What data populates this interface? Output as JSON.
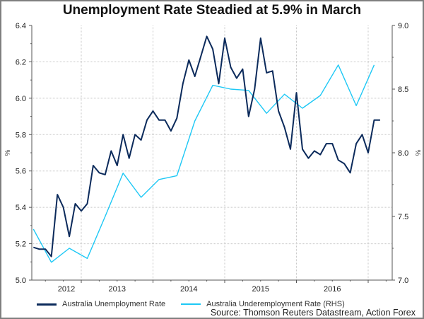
{
  "chart_data": {
    "type": "line",
    "title": "Unemployment Rate Steadied at 5.9% in March",
    "ylabel_left": "%",
    "ylabel_right": "%",
    "ylim_left": [
      5.0,
      6.4
    ],
    "ylim_right": [
      7.0,
      9.0
    ],
    "yticks_left": [
      "5.0",
      "5.2",
      "5.4",
      "5.6",
      "5.8",
      "6.0",
      "6.2",
      "6.4"
    ],
    "yticks_right": [
      "7.0",
      "7.5",
      "8.0",
      "8.5",
      "9.0"
    ],
    "xticks": [
      "2012",
      "2013",
      "2014",
      "2015",
      "2016"
    ],
    "grid": true,
    "legend_position": "bottom",
    "series": [
      {
        "name": "Australia Unemployment Rate",
        "axis": "left",
        "color": "#0b2a5b",
        "start": "2012-05",
        "frequency": "monthly",
        "values": [
          5.18,
          5.17,
          5.17,
          5.13,
          5.47,
          5.4,
          5.24,
          5.42,
          5.38,
          5.42,
          5.63,
          5.59,
          5.58,
          5.71,
          5.63,
          5.8,
          5.67,
          5.8,
          5.77,
          5.88,
          5.93,
          5.88,
          5.88,
          5.82,
          5.89,
          6.08,
          6.21,
          6.12,
          6.23,
          6.34,
          6.27,
          6.08,
          6.33,
          6.17,
          6.11,
          6.16,
          5.9,
          6.05,
          6.33,
          6.14,
          6.15,
          5.93,
          5.84,
          5.72,
          6.03,
          5.72,
          5.67,
          5.71,
          5.69,
          5.75,
          5.75,
          5.66,
          5.64,
          5.59,
          5.75,
          5.8,
          5.7,
          5.88,
          5.88
        ]
      },
      {
        "name": "Australia Underemployment Rate (RHS)",
        "axis": "right",
        "color": "#1ec8f5",
        "start": "2012-05",
        "frequency": "quarterly",
        "values": [
          7.4,
          7.14,
          7.25,
          7.17,
          7.5,
          7.84,
          7.65,
          7.79,
          7.82,
          8.25,
          8.53,
          8.5,
          8.49,
          8.31,
          8.46,
          8.35,
          8.45,
          8.69,
          8.37,
          8.69
        ]
      }
    ]
  },
  "source": "Source: Thomson Reuters Datastream, Action Forex"
}
